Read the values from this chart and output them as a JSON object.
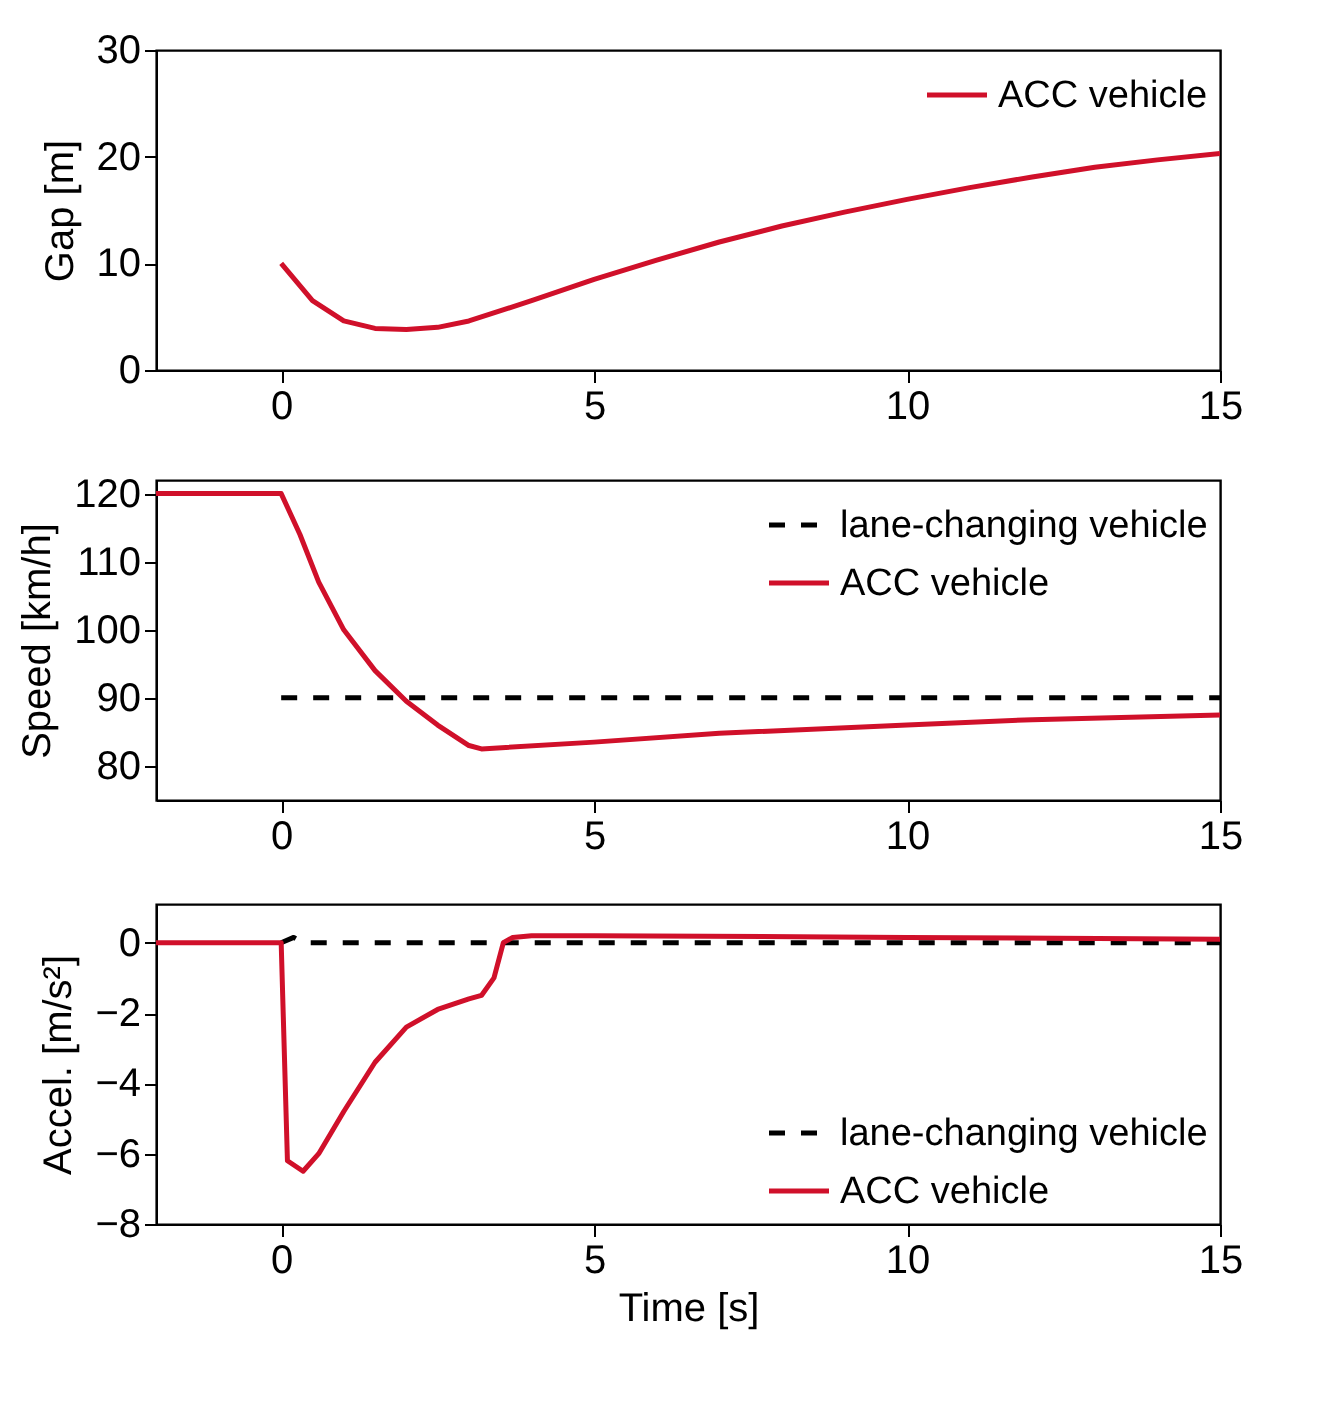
{
  "chart_data": [
    {
      "type": "line",
      "ylabel": "Gap [m]",
      "xlim": [
        -2,
        15
      ],
      "xticks": [
        0,
        5,
        10,
        15
      ],
      "ylim": [
        0,
        30
      ],
      "yticks": [
        0,
        10,
        20,
        30
      ],
      "grid": false,
      "legend": "top right",
      "series": [
        {
          "name": "ACC vehicle",
          "color": "#d0102a",
          "line_style": "solid",
          "x": [
            0,
            0.5,
            1,
            1.5,
            2,
            2.5,
            3,
            4,
            5,
            6,
            7,
            8,
            9,
            10,
            11,
            12,
            13,
            14,
            15
          ],
          "values": [
            10,
            6.5,
            4.6,
            3.9,
            3.8,
            4.0,
            4.6,
            6.5,
            8.5,
            10.3,
            12,
            13.5,
            14.8,
            16,
            17.1,
            18.1,
            19,
            19.7,
            20.3
          ]
        }
      ]
    },
    {
      "type": "line",
      "ylabel": "Speed [km/h]",
      "xlim": [
        -2,
        15
      ],
      "xticks": [
        0,
        5,
        10,
        15
      ],
      "ylim": [
        75,
        122
      ],
      "yticks": [
        80,
        90,
        100,
        110,
        120
      ],
      "grid": false,
      "legend": "top right",
      "series": [
        {
          "name": "lane-changing vehicle",
          "color": "#000000",
          "line_style": "dashed",
          "x": [
            0,
            15
          ],
          "values": [
            90,
            90
          ]
        },
        {
          "name": "ACC vehicle",
          "color": "#d0102a",
          "line_style": "solid",
          "x": [
            -2,
            0,
            0.3,
            0.6,
            1,
            1.5,
            2,
            2.5,
            3,
            3.2,
            5,
            7,
            10,
            12,
            15
          ],
          "values": [
            120,
            120,
            114,
            107,
            100,
            94,
            89.5,
            86,
            83,
            82.5,
            83.5,
            84.8,
            86,
            86.8,
            87.5
          ]
        }
      ]
    },
    {
      "type": "line",
      "ylabel": "Accel. [m/s²]",
      "xlabel": "Time [s]",
      "xlim": [
        -2,
        15
      ],
      "xticks": [
        0,
        5,
        10,
        15
      ],
      "ylim": [
        -8,
        1.1
      ],
      "yticks": [
        -8,
        -6,
        -4,
        -2,
        0
      ],
      "grid": false,
      "legend": "bottom right",
      "series": [
        {
          "name": "lane-changing vehicle",
          "color": "#000000",
          "line_style": "dashed",
          "x": [
            0,
            0.2,
            0.35,
            15
          ],
          "values": [
            0,
            0.15,
            0,
            0
          ]
        },
        {
          "name": "ACC vehicle",
          "color": "#d0102a",
          "line_style": "solid",
          "x": [
            -2,
            0,
            0.1,
            0.35,
            0.6,
            1,
            1.5,
            2,
            2.5,
            3,
            3.2,
            3.4,
            3.55,
            3.7,
            4,
            5,
            10,
            15
          ],
          "values": [
            0,
            0,
            -6.2,
            -6.5,
            -6,
            -4.8,
            -3.4,
            -2.4,
            -1.9,
            -1.6,
            -1.5,
            -1,
            0,
            0.15,
            0.2,
            0.2,
            0.15,
            0.1
          ]
        }
      ]
    }
  ]
}
